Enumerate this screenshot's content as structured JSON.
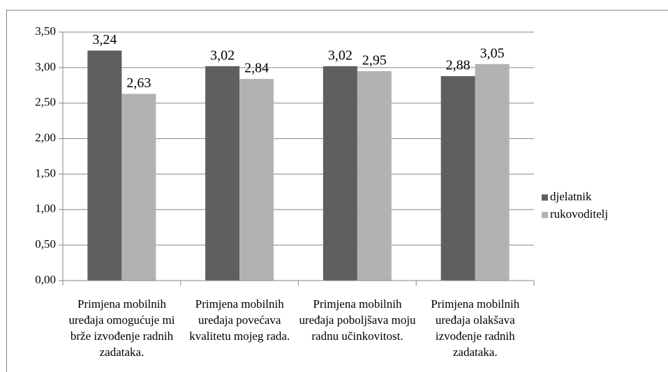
{
  "chart_data": {
    "type": "bar",
    "categories": [
      "Primjena mobilnih uređaja omogućuje mi brže izvođenje radnih zadataka.",
      "Primjena mobilnih uređaja povećava kvalitetu mojeg rada.",
      "Primjena mobilnih uređaja poboljšava moju radnu učinkovitost.",
      "Primjena mobilnih uređaja olakšava izvođenje radnih zadataka."
    ],
    "series": [
      {
        "name": "djelatnik",
        "color": "#5f5f5f",
        "values": [
          3.24,
          3.02,
          3.02,
          2.88
        ],
        "value_labels": [
          "3,24",
          "3,02",
          "3,02",
          "2,88"
        ]
      },
      {
        "name": "rukovoditelj",
        "color": "#b2b2b2",
        "values": [
          2.63,
          2.84,
          2.95,
          3.05
        ],
        "value_labels": [
          "2,63",
          "2,84",
          "2,95",
          "3,05"
        ]
      }
    ],
    "ylim": [
      0,
      3.5
    ],
    "yticks": [
      {
        "value": 0,
        "label": "0,00"
      },
      {
        "value": 0.5,
        "label": "0,50"
      },
      {
        "value": 1,
        "label": "1,00"
      },
      {
        "value": 1.5,
        "label": "1,50"
      },
      {
        "value": 2,
        "label": "2,00"
      },
      {
        "value": 2.5,
        "label": "2,50"
      },
      {
        "value": 3,
        "label": "3,00"
      },
      {
        "value": 3.5,
        "label": "3,50"
      }
    ],
    "grid": true,
    "legend": "right"
  }
}
